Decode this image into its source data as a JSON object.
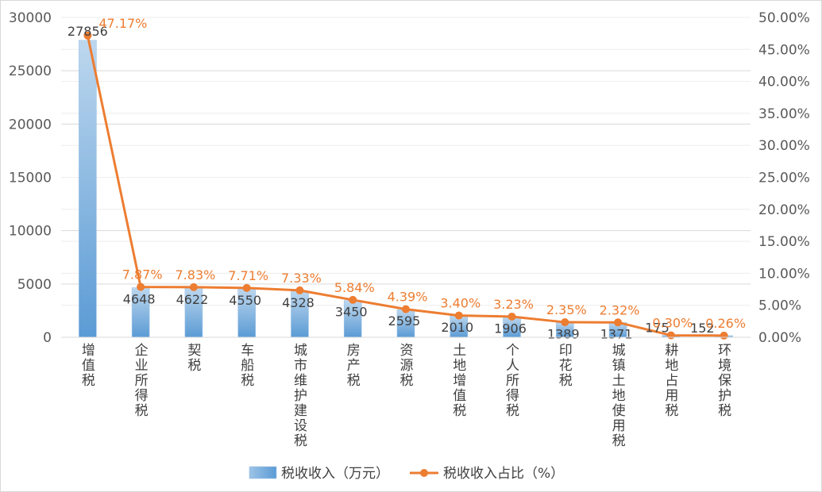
{
  "chart_data": {
    "type": "bar",
    "categories": [
      "增值税",
      "企业所得税",
      "契税",
      "车船税",
      "城市维护建设税",
      "房产税",
      "资源税",
      "土地增值税",
      "个人所得税",
      "印花税",
      "城镇土地使用税",
      "耕地占用税",
      "环境保护税"
    ],
    "series": [
      {
        "name": "税收收入（万元）",
        "type": "bar",
        "axis": "left",
        "values": [
          27856,
          4648,
          4622,
          4550,
          4328,
          3450,
          2595,
          2010,
          1906,
          1389,
          1371,
          175,
          152
        ],
        "labels": [
          "27856",
          "4648",
          "4622",
          "4550",
          "4328",
          "3450",
          "2595",
          "2010",
          "1906",
          "1389",
          "1371",
          "175",
          "152"
        ],
        "color": "#5b9bd5"
      },
      {
        "name": "税收收入占比（%）",
        "type": "line",
        "axis": "right",
        "values": [
          47.17,
          7.87,
          7.83,
          7.71,
          7.33,
          5.84,
          4.39,
          3.4,
          3.23,
          2.35,
          2.32,
          0.3,
          0.26
        ],
        "labels": [
          "47.17%",
          "7.87%",
          "7.83%",
          "7.71%",
          "7.33%",
          "5.84%",
          "4.39%",
          "3.40%",
          "3.23%",
          "2.35%",
          "2.32%",
          "0.30%",
          "0.26%"
        ],
        "color": "#ed7d31"
      }
    ],
    "y_left": {
      "ylim": [
        0,
        30000
      ],
      "ticks": [
        "0",
        "5000",
        "10000",
        "15000",
        "20000",
        "25000",
        "30000"
      ]
    },
    "y_right": {
      "ylim": [
        0,
        50
      ],
      "ticks": [
        "0.00%",
        "5.00%",
        "10.00%",
        "15.00%",
        "20.00%",
        "25.00%",
        "30.00%",
        "35.00%",
        "40.00%",
        "45.00%",
        "50.00%"
      ]
    },
    "grid": true,
    "legend_position": "bottom",
    "title": "",
    "xlabel": "",
    "ylabel": ""
  }
}
